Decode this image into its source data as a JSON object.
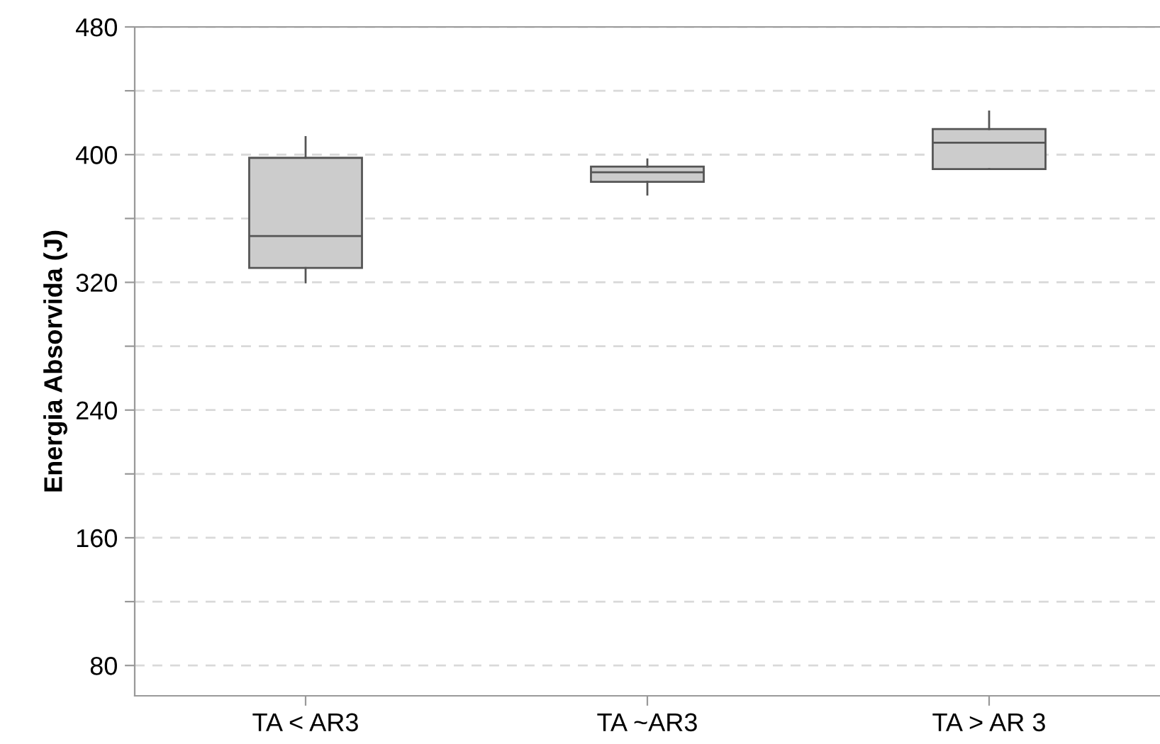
{
  "chart_data": {
    "type": "box",
    "ylabel": "Energia Absorvida (J)",
    "categories": [
      "TA < AR3",
      "TA ~AR3",
      "TA > AR 3"
    ],
    "boxes": [
      {
        "low": 320,
        "q1": 329,
        "median": 349,
        "q3": 398,
        "high": 411
      },
      {
        "low": 375,
        "q1": 383,
        "median": 389,
        "q3": 392.5,
        "high": 397
      },
      {
        "low": 391,
        "q1": 391,
        "median": 407.5,
        "q3": 416,
        "high": 427
      }
    ],
    "color": "#cccccc",
    "ylim": [
      61,
      480
    ],
    "yticks": [
      80,
      {
        "value": 120,
        "label": null
      },
      160,
      {
        "value": 200,
        "label": null
      },
      240,
      {
        "value": 280,
        "label": null
      },
      320,
      {
        "value": 360,
        "label": null
      },
      400,
      {
        "value": 440,
        "label": null
      },
      480
    ],
    "grid": "y"
  }
}
